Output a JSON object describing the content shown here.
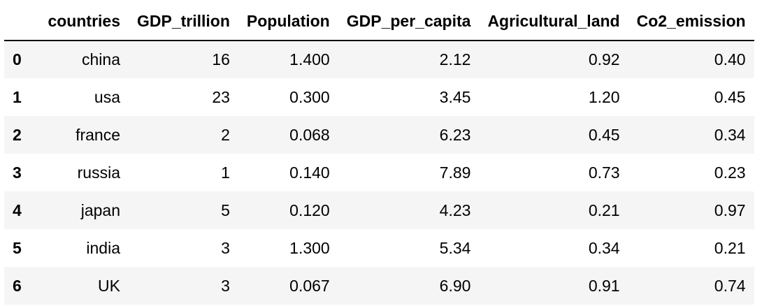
{
  "table": {
    "columns": [
      "",
      "countries",
      "GDP_trillion",
      "Population",
      "GDP_per_capita",
      "Agricultural_land",
      "Co2_emission"
    ],
    "rows": [
      [
        "0",
        "china",
        "16",
        "1.400",
        "2.12",
        "0.92",
        "0.40"
      ],
      [
        "1",
        "usa",
        "23",
        "0.300",
        "3.45",
        "1.20",
        "0.45"
      ],
      [
        "2",
        "france",
        "2",
        "0.068",
        "6.23",
        "0.45",
        "0.34"
      ],
      [
        "3",
        "russia",
        "1",
        "0.140",
        "7.89",
        "0.73",
        "0.23"
      ],
      [
        "4",
        "japan",
        "5",
        "0.120",
        "4.23",
        "0.21",
        "0.97"
      ],
      [
        "5",
        "india",
        "3",
        "1.300",
        "5.34",
        "0.34",
        "0.21"
      ],
      [
        "6",
        "UK",
        "3",
        "0.067",
        "6.90",
        "0.91",
        "0.74"
      ]
    ]
  }
}
